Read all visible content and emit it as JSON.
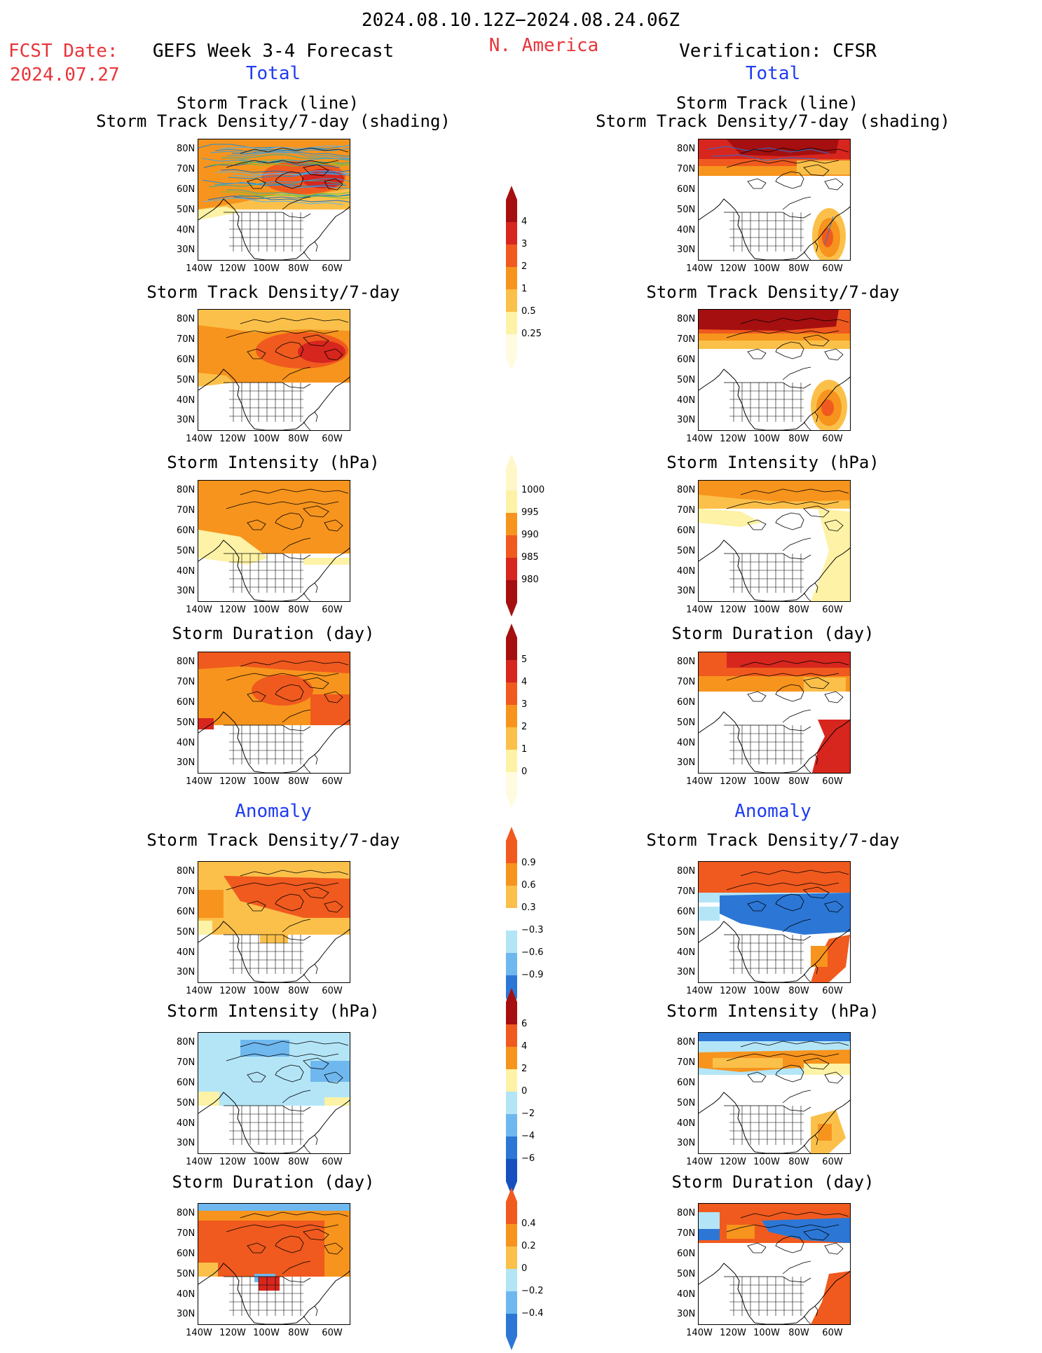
{
  "header": {
    "date_range": "2024.08.10.12Z−2024.08.24.06Z",
    "fcst_label": "FCST Date:",
    "fcst_date": "2024.07.27",
    "left_title": "GEFS Week 3-4 Forecast",
    "region": "N. America",
    "right_title": "Verification: CFSR",
    "total_left": "Total",
    "total_right": "Total",
    "anomaly_left": "Anomaly",
    "anomaly_right": "Anomaly"
  },
  "panels": {
    "track_line_title": "Storm Track (line)",
    "track_shading_title": "Storm Track Density/7-day (shading)",
    "density_title": "Storm Track Density/7-day",
    "intensity_title": "Storm Intensity (hPa)",
    "duration_title": "Storm Duration (day)"
  },
  "axes": {
    "lat_labels": [
      "80N",
      "70N",
      "60N",
      "50N",
      "40N",
      "30N"
    ],
    "lon_labels": [
      "140W",
      "120W",
      "100W",
      "80W",
      "60W"
    ]
  },
  "colorbars": {
    "density_total": [
      "4",
      "3",
      "2",
      "1",
      "0.5",
      "0.25"
    ],
    "intensity_total": [
      "1000",
      "995",
      "990",
      "985",
      "980"
    ],
    "duration_total": [
      "5",
      "4",
      "3",
      "2",
      "1",
      "0"
    ],
    "density_anom": [
      "0.9",
      "0.6",
      "0.3",
      "−0.3",
      "−0.6",
      "−0.9"
    ],
    "intensity_anom": [
      "6",
      "4",
      "2",
      "0",
      "−2",
      "−4",
      "−6"
    ],
    "duration_anom": [
      "0.4",
      "0.2",
      "0",
      "−0.2",
      "−0.4"
    ]
  },
  "colors": {
    "red_text": "#e8353a",
    "blue_text": "#1f3cf0",
    "dark_red": "#a50f0f",
    "red": "#d7261e",
    "orange_red": "#f05a1e",
    "orange": "#f7941d",
    "light_orange": "#fbc04a",
    "yellow": "#fdf2a5",
    "light_blue": "#b3e5f7",
    "mid_blue": "#6fb8ef",
    "blue": "#2c77d6",
    "deep_blue": "#1650c0"
  }
}
